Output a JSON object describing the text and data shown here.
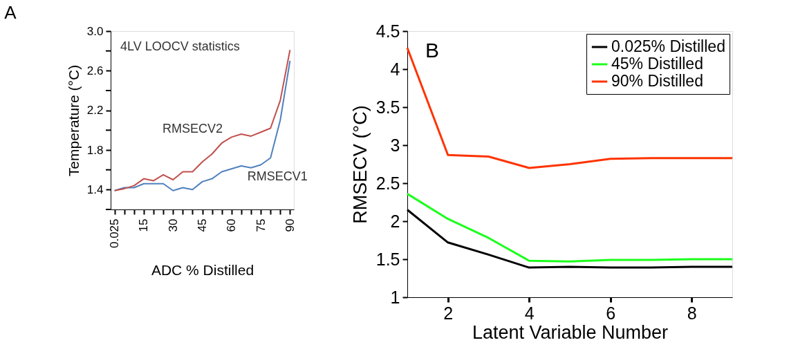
{
  "chart_data": [
    {
      "type": "line",
      "title": "A",
      "xlabel": "ADC % Distilled",
      "ylabel": "Temperature (°C)",
      "categories": [
        "0.025",
        null,
        null,
        "15",
        null,
        null,
        "30",
        null,
        null,
        "45",
        null,
        null,
        "60",
        null,
        null,
        "75",
        null,
        null,
        "90"
      ],
      "ylim": [
        1.2,
        3.0
      ],
      "yticks": [
        {
          "value": 1.2,
          "label": null
        },
        1.4,
        {
          "value": 1.6,
          "label": null
        },
        1.8,
        {
          "value": 2.0,
          "label": null
        },
        2.2,
        {
          "value": 2.4,
          "label": null
        },
        2.6,
        {
          "value": 2.8,
          "label": null
        },
        {
          "value": 3.0,
          "label": "3.0"
        }
      ],
      "grid": false,
      "legend": false,
      "annotations": [
        "4LV LOOCV statistics"
      ],
      "series": [
        {
          "name": "RMSECV1",
          "color": "#4f81bd",
          "values": [
            1.39,
            1.42,
            1.42,
            1.46,
            1.46,
            1.46,
            1.39,
            1.42,
            1.4,
            1.48,
            1.51,
            1.58,
            1.61,
            1.64,
            1.62,
            1.65,
            1.72,
            2.1,
            2.7
          ]
        },
        {
          "name": "RMSECV2",
          "color": "#c0504d",
          "values": [
            1.39,
            1.41,
            1.44,
            1.51,
            1.49,
            1.55,
            1.5,
            1.58,
            1.58,
            1.68,
            1.76,
            1.87,
            1.93,
            1.96,
            1.94,
            1.98,
            2.02,
            2.3,
            2.81
          ]
        }
      ]
    },
    {
      "type": "line",
      "title": "B",
      "xlabel": "Latent Variable Number",
      "ylabel": "RMSECV (°C)",
      "x": [
        1,
        2,
        3,
        4,
        5,
        6,
        7,
        8,
        9
      ],
      "xlim": [
        1,
        9
      ],
      "xticks": [
        2,
        4,
        6,
        8
      ],
      "ylim": [
        1,
        4.5
      ],
      "yticks": [
        1,
        1.5,
        2,
        2.5,
        3,
        3.5,
        4,
        4.5
      ],
      "grid": false,
      "legend": "top right",
      "series": [
        {
          "name": "0.025% Distilled",
          "color": "#000000",
          "values": [
            2.15,
            1.72,
            1.56,
            1.39,
            1.4,
            1.39,
            1.39,
            1.4,
            1.4
          ]
        },
        {
          "name": "45% Distilled",
          "color": "#1aff1a",
          "values": [
            2.36,
            2.03,
            1.78,
            1.48,
            1.47,
            1.49,
            1.49,
            1.5,
            1.5
          ]
        },
        {
          "name": "90% Distilled",
          "color": "#ff3300",
          "values": [
            4.28,
            2.87,
            2.85,
            2.7,
            2.75,
            2.82,
            2.83,
            2.83,
            2.83
          ]
        }
      ]
    }
  ]
}
